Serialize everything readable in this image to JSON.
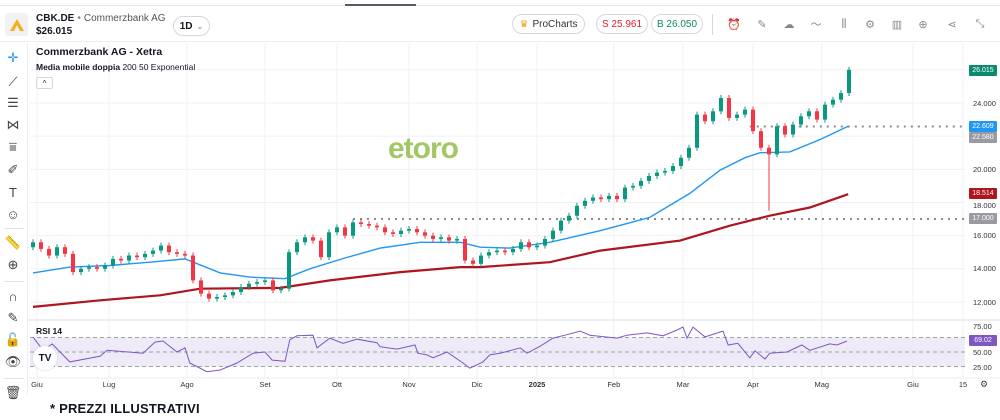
{
  "header": {
    "symbol": "CBK.DE",
    "separator": "•",
    "company": "Commerzbank AG",
    "price": "$26.015",
    "timeframe": "1D",
    "timeframe_caret": "⌄",
    "procharts_label": "ProCharts",
    "sell_label": "S 25.961",
    "buy_label": "B 26.050",
    "toolbar_icons": [
      "alert-icon",
      "draw-icon",
      "cloud-icon",
      "indicator-icon",
      "candles-icon",
      "settings-icon",
      "bars-icon",
      "add-icon",
      "share-icon",
      "collapse-icon"
    ]
  },
  "chart": {
    "title": "Commerzbank AG - Xetra",
    "indicator_name": "Media mobile doppia",
    "indicator_params": "200 50 Exponential",
    "collapse_glyph": "^",
    "rsi_label": "RSI 14",
    "watermark": "etoro",
    "tv_logo": "TV",
    "price_axis": [
      "24.000",
      "20.000",
      "18.000",
      "16.000",
      "14.000",
      "12.000"
    ],
    "rsi_axis": [
      "75.00",
      "50.00",
      "25.00"
    ],
    "tags": {
      "last": "26.015",
      "ema50": "22.609",
      "line_hi": "22.580",
      "ema200": "18.514",
      "line_lo": "17.000",
      "rsi": "69.02"
    },
    "colors": {
      "up": "#089981",
      "down": "#f23645",
      "ema50": "#2196f3",
      "ema200": "#b0141e",
      "rsi": "#7e57c2",
      "last": "#0b8a6f",
      "level": "#8a8a92"
    }
  },
  "footer": "* PREZZI ILLUSTRATIVI",
  "chart_data": {
    "type": "candlestick",
    "title": "Commerzbank AG - Xetra",
    "first_open": 15.3,
    "closes": [
      15.6,
      15.2,
      14.8,
      15.3,
      14.9,
      13.8,
      14.0,
      14.1,
      14.0,
      14.2,
      14.6,
      14.5,
      14.8,
      14.7,
      14.9,
      15.1,
      15.4,
      15.0,
      14.9,
      14.8,
      13.3,
      12.5,
      12.2,
      12.3,
      12.4,
      12.6,
      12.9,
      13.1,
      13.2,
      13.3,
      12.7,
      12.8,
      15.0,
      15.6,
      15.9,
      15.7,
      14.7,
      16.2,
      16.5,
      16.0,
      16.8,
      16.7,
      16.6,
      16.5,
      16.2,
      16.1,
      16.3,
      16.4,
      16.2,
      16.0,
      15.8,
      15.9,
      15.7,
      15.8,
      14.5,
      14.3,
      14.8,
      15.0,
      15.1,
      15.0,
      15.2,
      15.6,
      15.3,
      15.4,
      15.8,
      16.3,
      16.9,
      17.2,
      17.8,
      18.1,
      18.3,
      18.2,
      18.4,
      18.2,
      18.9,
      19.0,
      19.3,
      19.6,
      19.8,
      19.9,
      20.2,
      20.7,
      21.3,
      23.3,
      22.9,
      23.5,
      24.3,
      23.1,
      23.3,
      23.6,
      22.3,
      21.3,
      20.9,
      22.6,
      22.1,
      22.7,
      23.2,
      23.5,
      23.0,
      23.9,
      24.2,
      24.6,
      26.0
    ],
    "notable_low": {
      "index": 92,
      "value": 17.5
    },
    "ema50": [
      [
        0,
        13.75
      ],
      [
        4.6,
        14.1
      ],
      [
        9.6,
        14.2
      ],
      [
        14.6,
        14.4
      ],
      [
        19,
        14.6
      ],
      [
        23.4,
        13.75
      ],
      [
        27.1,
        13.5
      ],
      [
        31.5,
        13.4
      ],
      [
        34.6,
        14.0
      ],
      [
        39,
        14.65
      ],
      [
        43.4,
        15.25
      ],
      [
        48.4,
        15.6
      ],
      [
        53.4,
        15.6
      ],
      [
        55.9,
        15.3
      ],
      [
        59.6,
        15.25
      ],
      [
        64.6,
        15.6
      ],
      [
        70.9,
        16.3
      ],
      [
        77.1,
        17.1
      ],
      [
        82.1,
        18.55
      ],
      [
        85.9,
        19.95
      ],
      [
        89,
        20.7
      ],
      [
        90.9,
        21.0
      ],
      [
        94.6,
        21.05
      ],
      [
        98.4,
        21.8
      ],
      [
        101.9,
        22.6
      ]
    ],
    "ema200": [
      [
        0,
        11.7
      ],
      [
        8.4,
        12.1
      ],
      [
        15.9,
        12.4
      ],
      [
        20.9,
        12.8
      ],
      [
        30.9,
        12.85
      ],
      [
        37.1,
        13.3
      ],
      [
        45.9,
        13.8
      ],
      [
        53.4,
        14.1
      ],
      [
        55.9,
        14.1
      ],
      [
        64.6,
        14.4
      ],
      [
        70.9,
        15.1
      ],
      [
        80.9,
        15.7
      ],
      [
        87.1,
        16.6
      ],
      [
        92.1,
        17.2
      ],
      [
        97.1,
        17.7
      ],
      [
        101.9,
        18.5
      ]
    ],
    "levels": [
      {
        "value": 22.58,
        "from_index": 89.6
      },
      {
        "value": 17.0,
        "from_index": 40
      }
    ],
    "rsi": [
      [
        0,
        76
      ],
      [
        1.25,
        53
      ],
      [
        2.4,
        64
      ],
      [
        4.6,
        33
      ],
      [
        8.4,
        43
      ],
      [
        9.25,
        53
      ],
      [
        13.75,
        48
      ],
      [
        15.25,
        67
      ],
      [
        16.25,
        69
      ],
      [
        18,
        50
      ],
      [
        19,
        57
      ],
      [
        19.6,
        31
      ],
      [
        21.75,
        16
      ],
      [
        23.4,
        19
      ],
      [
        25.5,
        31
      ],
      [
        27.5,
        48
      ],
      [
        29,
        50
      ],
      [
        29.9,
        36
      ],
      [
        31.5,
        34
      ],
      [
        32.1,
        71
      ],
      [
        33,
        78
      ],
      [
        35,
        79
      ],
      [
        35.5,
        57
      ],
      [
        37.1,
        74
      ],
      [
        38.75,
        65
      ],
      [
        40.5,
        72
      ],
      [
        43,
        66
      ],
      [
        43.4,
        59
      ],
      [
        45.5,
        55
      ],
      [
        47.75,
        62
      ],
      [
        48.1,
        48
      ],
      [
        49.25,
        45
      ],
      [
        50,
        40
      ],
      [
        51.75,
        50
      ],
      [
        53.75,
        31
      ],
      [
        54.6,
        22
      ],
      [
        56.25,
        33
      ],
      [
        57.1,
        45
      ],
      [
        58.4,
        48
      ],
      [
        60.9,
        57
      ],
      [
        61.75,
        48
      ],
      [
        63.4,
        60
      ],
      [
        65,
        74
      ],
      [
        66.5,
        79
      ],
      [
        68.4,
        86
      ],
      [
        69.6,
        79
      ],
      [
        73,
        74
      ],
      [
        74.25,
        79
      ],
      [
        76.75,
        83
      ],
      [
        78.75,
        78
      ],
      [
        80.5,
        88
      ],
      [
        81.25,
        93
      ],
      [
        81.75,
        74
      ],
      [
        82.5,
        93
      ],
      [
        84,
        76
      ],
      [
        86.25,
        86
      ],
      [
        86.9,
        62
      ],
      [
        88.1,
        65
      ],
      [
        89.6,
        40
      ],
      [
        90.25,
        52
      ],
      [
        91.5,
        38
      ],
      [
        92.1,
        48
      ],
      [
        94.25,
        50
      ],
      [
        96.1,
        62
      ],
      [
        97.1,
        53
      ],
      [
        99.6,
        64
      ],
      [
        100.5,
        62
      ],
      [
        101.75,
        69
      ]
    ],
    "rsi_bands": [
      25,
      50,
      75
    ],
    "ylim": [
      11,
      26.5
    ],
    "x_ticks": [
      {
        "label": "Giu",
        "index": 0.5
      },
      {
        "label": "Lug",
        "index": 9.5
      },
      {
        "label": "Ago",
        "index": 19.25
      },
      {
        "label": "Set",
        "index": 29
      },
      {
        "label": "Ott",
        "index": 38
      },
      {
        "label": "Nov",
        "index": 47
      },
      {
        "label": "Dic",
        "index": 55.5
      },
      {
        "label": "2025",
        "index": 63,
        "bold": true
      },
      {
        "label": "Feb",
        "index": 72.6
      },
      {
        "label": "Mar",
        "index": 81.25
      },
      {
        "label": "Apr",
        "index": 90
      },
      {
        "label": "Mag",
        "index": 98.6
      },
      {
        "label": "Giu",
        "index": 110
      },
      {
        "label": "15",
        "index": 116.25
      }
    ]
  }
}
